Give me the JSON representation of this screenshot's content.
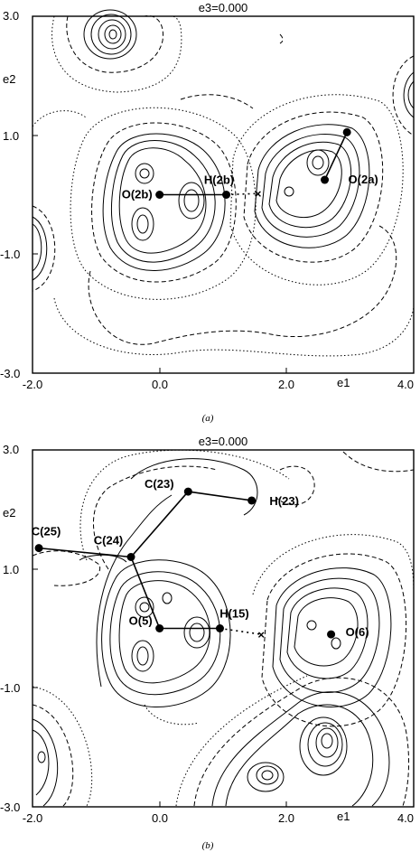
{
  "panels": [
    {
      "id": "a",
      "title": "e3=0.000",
      "caption": "(a)",
      "x_ticks": [
        "-2.0",
        "0.0",
        "2.0",
        "4.0"
      ],
      "y_ticks": [
        "3.0",
        "1.0",
        "-1.0",
        "-3.0"
      ],
      "x_axis_label": "e1",
      "y_axis_label": "e2",
      "atoms": [
        {
          "label": "O(2b)",
          "x": 0.0,
          "y": 0.0
        },
        {
          "label": "H(2b)",
          "x": 1.05,
          "y": 0.0
        },
        {
          "label": "O(2a)",
          "x": 2.6,
          "y": 0.25
        },
        {
          "label": "",
          "x": 2.95,
          "y": 1.05
        }
      ],
      "bonds": [
        [
          0,
          1
        ],
        [
          2,
          3
        ]
      ],
      "marker": {
        "x": 1.55,
        "y": 0.02
      }
    },
    {
      "id": "b",
      "title": "e3=0.000",
      "caption": "(b)",
      "x_ticks": [
        "-2.0",
        "0.0",
        "2.0",
        "4.0"
      ],
      "y_ticks": [
        "3.0",
        "1.0",
        "-1.0",
        "-3.0"
      ],
      "x_axis_label": "e1",
      "y_axis_label": "e2",
      "atoms": [
        {
          "label": "O(5)",
          "x": 0.0,
          "y": 0.0
        },
        {
          "label": "H(15)",
          "x": 0.95,
          "y": 0.0
        },
        {
          "label": "O(6)",
          "x": 2.7,
          "y": -0.1
        },
        {
          "label": "C(24)",
          "x": -0.45,
          "y": 1.2
        },
        {
          "label": "C(25)",
          "x": -1.9,
          "y": 1.35
        },
        {
          "label": "C(23)",
          "x": 0.45,
          "y": 2.3
        },
        {
          "label": "H(23)",
          "x": 1.45,
          "y": 2.15
        }
      ],
      "bonds": [
        [
          0,
          1
        ],
        [
          0,
          3
        ],
        [
          3,
          4
        ],
        [
          3,
          5
        ],
        [
          5,
          6
        ]
      ],
      "marker": {
        "x": 1.6,
        "y": -0.1
      }
    }
  ]
}
